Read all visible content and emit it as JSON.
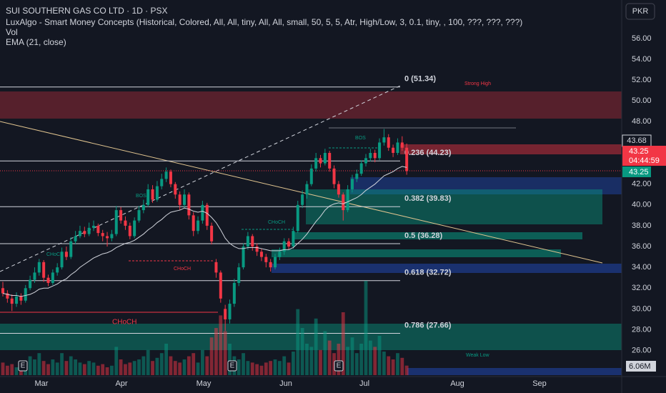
{
  "chart_data": {
    "type": "candlestick",
    "title": "SUI SOUTHERN GAS CO LTD · 1D · PSX",
    "indicators": [
      "LuxAlgo - Smart Money Concepts (Historical, Colored, All, All, tiny, All, All, small, 50, 5, 5, Atr, High/Low, 3, 0.1, tiny, , 100, ???, ???, ???)",
      "Vol",
      "EMA (21, close)"
    ],
    "currency": "PKR",
    "x_labels": [
      "Mar",
      "Apr",
      "May",
      "Jun",
      "Jul",
      "Aug",
      "Sep"
    ],
    "ylim": [
      23.5,
      59.7
    ],
    "yticks": [
      {
        "value": 56,
        "label": "56.00"
      },
      {
        "value": 54,
        "label": "54.00"
      },
      {
        "value": 52,
        "label": "52.00"
      },
      {
        "value": 50,
        "label": "50.00"
      },
      {
        "value": 48,
        "label": "48.00"
      },
      {
        "value": 42,
        "label": "42.00"
      },
      {
        "value": 40,
        "label": "40.00"
      },
      {
        "value": 38,
        "label": "38.00"
      },
      {
        "value": 36,
        "label": "36.00"
      },
      {
        "value": 34,
        "label": "34.00"
      },
      {
        "value": 32,
        "label": "32.00"
      },
      {
        "value": 30,
        "label": "30.00"
      },
      {
        "value": 28,
        "label": "28.00"
      },
      {
        "value": 26,
        "label": "26.00"
      }
    ],
    "grid": false,
    "up_color": "#089981",
    "down_color": "#f23645",
    "ema_color": "#d1d4dc",
    "candles": [
      [
        32.0,
        32.6,
        31.2,
        31.5
      ],
      [
        31.5,
        31.8,
        30.6,
        31.0
      ],
      [
        31.0,
        31.4,
        29.8,
        30.5
      ],
      [
        30.5,
        31.6,
        30.2,
        31.2
      ],
      [
        31.2,
        31.5,
        30.4,
        30.8
      ],
      [
        30.8,
        32.3,
        30.6,
        32.0
      ],
      [
        32.0,
        33.2,
        31.8,
        32.8
      ],
      [
        32.8,
        34.0,
        32.5,
        33.5
      ],
      [
        33.5,
        34.8,
        33.2,
        34.5
      ],
      [
        34.5,
        34.7,
        32.6,
        33.0
      ],
      [
        33.0,
        33.3,
        32.2,
        32.5
      ],
      [
        32.5,
        33.8,
        32.3,
        33.5
      ],
      [
        33.5,
        34.4,
        33.2,
        34.0
      ],
      [
        34.0,
        35.9,
        33.8,
        35.5
      ],
      [
        35.5,
        36.0,
        34.7,
        35.0
      ],
      [
        35.0,
        36.9,
        34.8,
        36.5
      ],
      [
        36.5,
        37.5,
        36.2,
        37.0
      ],
      [
        37.0,
        38.0,
        36.8,
        37.5
      ],
      [
        37.5,
        37.9,
        36.9,
        37.2
      ],
      [
        37.2,
        38.3,
        37.0,
        37.8
      ],
      [
        37.8,
        38.5,
        37.5,
        38.0
      ],
      [
        38.0,
        38.2,
        37.0,
        37.3
      ],
      [
        37.3,
        37.6,
        36.5,
        37.0
      ],
      [
        37.0,
        37.4,
        36.0,
        36.8
      ],
      [
        36.8,
        37.6,
        36.5,
        37.2
      ],
      [
        37.2,
        39.9,
        37.0,
        39.5
      ],
      [
        39.5,
        39.8,
        38.2,
        38.5
      ],
      [
        38.5,
        38.9,
        37.6,
        38.0
      ],
      [
        38.0,
        38.3,
        36.7,
        37.0
      ],
      [
        37.0,
        38.8,
        36.8,
        38.5
      ],
      [
        38.5,
        39.9,
        38.3,
        39.5
      ],
      [
        39.5,
        40.5,
        39.2,
        40.0
      ],
      [
        40.0,
        42.0,
        39.8,
        41.5
      ],
      [
        41.5,
        41.9,
        40.2,
        40.5
      ],
      [
        40.5,
        42.3,
        40.3,
        41.8
      ],
      [
        41.8,
        43.0,
        41.5,
        42.5
      ],
      [
        42.5,
        43.6,
        42.2,
        43.2
      ],
      [
        43.2,
        43.4,
        41.7,
        42.0
      ],
      [
        42.0,
        42.2,
        40.6,
        41.0
      ],
      [
        41.0,
        41.3,
        39.5,
        40.0
      ],
      [
        40.0,
        41.5,
        39.7,
        41.0
      ],
      [
        41.0,
        41.2,
        38.6,
        39.0
      ],
      [
        39.0,
        39.3,
        37.0,
        37.5
      ],
      [
        37.5,
        38.9,
        37.2,
        38.5
      ],
      [
        38.5,
        40.4,
        38.2,
        40.0
      ],
      [
        40.0,
        40.2,
        37.6,
        38.0
      ],
      [
        38.0,
        38.3,
        36.2,
        36.5
      ],
      [
        34.5,
        34.8,
        33.0,
        33.5
      ],
      [
        33.5,
        33.7,
        30.6,
        31.0
      ],
      [
        30.0,
        30.4,
        27.9,
        29.0
      ],
      [
        29.0,
        30.9,
        28.6,
        30.5
      ],
      [
        30.5,
        32.9,
        30.2,
        32.5
      ],
      [
        32.5,
        34.4,
        32.2,
        34.0
      ],
      [
        34.0,
        36.3,
        33.8,
        36.0
      ],
      [
        36.0,
        37.4,
        35.7,
        37.0
      ],
      [
        37.0,
        37.2,
        35.6,
        36.0
      ],
      [
        36.0,
        36.3,
        35.1,
        35.5
      ],
      [
        35.5,
        35.8,
        34.6,
        35.0
      ],
      [
        35.0,
        35.3,
        34.0,
        34.5
      ],
      [
        34.5,
        34.8,
        33.6,
        34.0
      ],
      [
        34.0,
        35.3,
        33.8,
        35.0
      ],
      [
        35.0,
        35.9,
        34.7,
        35.5
      ],
      [
        35.5,
        36.8,
        35.2,
        36.5
      ],
      [
        36.5,
        36.8,
        35.7,
        36.0
      ],
      [
        36.0,
        37.9,
        35.8,
        37.5
      ],
      [
        37.5,
        40.4,
        37.3,
        40.0
      ],
      [
        40.0,
        41.4,
        39.7,
        41.0
      ],
      [
        41.0,
        42.3,
        40.6,
        42.0
      ],
      [
        42.0,
        43.9,
        41.8,
        43.5
      ],
      [
        43.5,
        45.0,
        43.2,
        44.5
      ],
      [
        44.5,
        44.8,
        43.6,
        44.0
      ],
      [
        44.0,
        45.4,
        43.8,
        45.0
      ],
      [
        45.0,
        45.2,
        43.2,
        43.5
      ],
      [
        43.5,
        43.8,
        41.6,
        42.0
      ],
      [
        42.0,
        42.3,
        40.7,
        41.0
      ],
      [
        41.0,
        41.2,
        38.5,
        39.5
      ],
      [
        39.5,
        41.9,
        39.3,
        41.5
      ],
      [
        41.5,
        42.9,
        41.2,
        42.5
      ],
      [
        42.5,
        43.4,
        42.2,
        43.0
      ],
      [
        43.0,
        44.3,
        42.8,
        44.0
      ],
      [
        44.0,
        44.9,
        43.7,
        44.5
      ],
      [
        44.5,
        45.4,
        44.2,
        45.0
      ],
      [
        45.0,
        45.3,
        44.1,
        44.5
      ],
      [
        44.5,
        46.4,
        44.3,
        46.0
      ],
      [
        46.0,
        47.3,
        45.7,
        46.5
      ],
      [
        46.5,
        46.8,
        45.2,
        45.5
      ],
      [
        45.5,
        45.8,
        44.6,
        45.0
      ],
      [
        45.0,
        46.4,
        44.8,
        46.0
      ],
      [
        46.0,
        46.6,
        45.2,
        45.5
      ],
      [
        45.5,
        45.9,
        42.9,
        43.25
      ]
    ],
    "volume": [
      8,
      6,
      7,
      5,
      6,
      9,
      12,
      10,
      14,
      9,
      7,
      10,
      8,
      14,
      9,
      12,
      10,
      8,
      7,
      9,
      8,
      6,
      7,
      5,
      6,
      18,
      10,
      7,
      8,
      9,
      10,
      12,
      16,
      9,
      11,
      14,
      20,
      12,
      9,
      8,
      10,
      12,
      14,
      8,
      16,
      12,
      24,
      30,
      38,
      28,
      20,
      12,
      10,
      14,
      9,
      8,
      7,
      6,
      8,
      9,
      10,
      9,
      12,
      8,
      15,
      42,
      30,
      20,
      18,
      36,
      16,
      28,
      22,
      14,
      20,
      40,
      18,
      24,
      14,
      20,
      60,
      22,
      18,
      25,
      15,
      12,
      10,
      14,
      11,
      6.06
    ],
    "ema": [
      31.5,
      31.4,
      31.3,
      31.3,
      31.2,
      31.3,
      31.4,
      31.6,
      31.9,
      32.0,
      32.0,
      32.2,
      32.4,
      32.7,
      32.9,
      33.3,
      33.6,
      34.0,
      34.3,
      34.6,
      34.9,
      35.1,
      35.3,
      35.4,
      35.6,
      35.9,
      36.1,
      36.3,
      36.4,
      36.6,
      36.9,
      37.2,
      37.6,
      37.9,
      38.3,
      38.6,
      39.0,
      39.3,
      39.4,
      39.5,
      39.7,
      39.6,
      39.4,
      39.3,
      39.4,
      39.2,
      38.8,
      38.3,
      37.6,
      36.8,
      36.3,
      36.0,
      35.8,
      35.8,
      35.9,
      35.9,
      35.9,
      35.8,
      35.7,
      35.6,
      35.6,
      35.6,
      35.7,
      35.7,
      35.9,
      36.3,
      36.7,
      37.2,
      37.8,
      38.4,
      38.9,
      39.5,
      39.9,
      40.1,
      40.2,
      40.1,
      40.3,
      40.5,
      40.7,
      41.0,
      41.4,
      41.7,
      42.0,
      42.4,
      42.8,
      43.0,
      43.2,
      43.5,
      43.7,
      43.6
    ],
    "fib_levels": [
      {
        "label": "0 (51.34)",
        "value": 51.34
      },
      {
        "label": "0.236 (44.23)",
        "value": 44.23
      },
      {
        "label": "0.382 (39.83)",
        "value": 39.83
      },
      {
        "label": "0.5 (36.28)",
        "value": 36.28
      },
      {
        "label": "0.618 (32.72)",
        "value": 32.72
      },
      {
        "label": "0.786 (27.66)",
        "value": 27.66
      }
    ],
    "annotations": [
      "Strong High",
      "Weak Low",
      "BOS",
      "BOS",
      "CHoCH",
      "CHoCH",
      "CHoCH",
      "CHoCH"
    ],
    "earnings_marker": "E",
    "high_label": 43.68,
    "last_price": 43.25,
    "countdown": "04:44:59",
    "last_price_marker": 43.25,
    "volume_label": "6.06M"
  }
}
